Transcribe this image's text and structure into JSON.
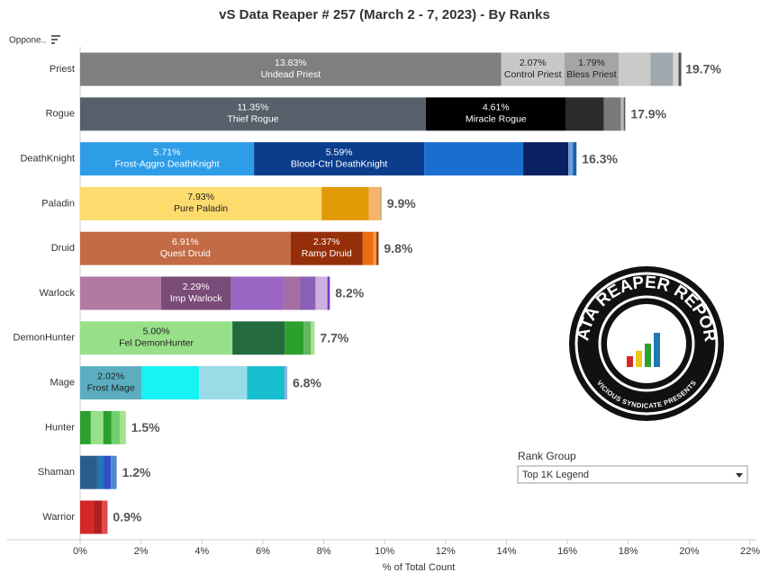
{
  "chart_data": {
    "type": "stacked-bar",
    "title": "vS Data Reaper #  257 (March 2 - 7, 2023) - By Ranks",
    "sort_label": "Oppone..",
    "x_label": "% of Total Count",
    "xlim": [
      0,
      22
    ],
    "xticks": [
      {
        "value": 0,
        "label": "0%"
      },
      {
        "value": 2,
        "label": "2%"
      },
      {
        "value": 4,
        "label": "4%"
      },
      {
        "value": 6,
        "label": "6%"
      },
      {
        "value": 8,
        "label": "8%"
      },
      {
        "value": 10,
        "label": "10%"
      },
      {
        "value": 12,
        "label": "12%"
      },
      {
        "value": 14,
        "label": "14%"
      },
      {
        "value": 16,
        "label": "16%"
      },
      {
        "value": 18,
        "label": "18%"
      },
      {
        "value": 20,
        "label": "20%"
      },
      {
        "value": 22,
        "label": "22%"
      }
    ],
    "categories": [
      "Priest",
      "Rogue",
      "DeathKnight",
      "Paladin",
      "Druid",
      "Warlock",
      "DemonHunter",
      "Mage",
      "Hunter",
      "Shaman",
      "Warrior"
    ],
    "rows": [
      {
        "values": [
          13.83,
          2.07,
          1.79,
          1.04,
          0.74,
          0.18,
          0.09
        ],
        "value_labels": [
          "13.83%",
          "2.07%",
          "1.79%",
          null,
          null,
          null,
          null
        ],
        "names": [
          "Undead Priest",
          "Control Priest",
          "Bless Priest",
          null,
          null,
          null,
          null
        ],
        "colors": [
          "#7f7f7f",
          "#c7c7c7",
          "#a5a5a5",
          "#c9c9c9",
          "#a0a8ad",
          "#d6d6d6",
          "#555555"
        ],
        "total": 19.7,
        "total_label": "19.7%"
      },
      {
        "values": [
          11.35,
          4.61,
          1.24,
          0.56,
          0.09,
          0.05
        ],
        "value_labels": [
          "11.35%",
          "4.61%",
          null,
          null,
          null,
          null
        ],
        "names": [
          "Thief Rogue",
          "Miracle Rogue",
          null,
          null,
          null,
          null
        ],
        "colors": [
          "#56606a",
          "#000000",
          "#2b2b2b",
          "#7a7a7a",
          "#bbbbbb",
          "#555555"
        ],
        "total": 17.9,
        "total_label": "17.9%"
      },
      {
        "values": [
          5.71,
          5.59,
          3.25,
          1.48,
          0.15,
          0.12
        ],
        "value_labels": [
          "5.71%",
          "5.59%",
          null,
          null,
          null,
          null
        ],
        "names": [
          "Frost-Aggro DeathKnight",
          "Blood-Ctrl DeathKnight",
          null,
          null,
          null,
          null
        ],
        "colors": [
          "#2e9de8",
          "#0a3e8c",
          "#1a6ed0",
          "#0a2060",
          "#6aa0d8",
          "#1e5fb0"
        ],
        "total": 16.3,
        "total_label": "16.3%"
      },
      {
        "values": [
          7.93,
          1.55,
          0.36,
          0.06
        ],
        "value_labels": [
          "7.93%",
          null,
          null,
          null
        ],
        "names": [
          "Pure Paladin",
          null,
          null,
          null
        ],
        "colors": [
          "#fddb6d",
          "#e19b06",
          "#f7b26b",
          "#c8b070"
        ],
        "total": 9.9,
        "total_label": "9.9%"
      },
      {
        "values": [
          6.91,
          2.37,
          0.35,
          0.1,
          0.07
        ],
        "value_labels": [
          "6.91%",
          "2.37%",
          null,
          null,
          null
        ],
        "names": [
          "Quest Druid",
          "Ramp Druid",
          null,
          null,
          null
        ],
        "colors": [
          "#c26b45",
          "#952f0a",
          "#ef6a14",
          "#f59a3d",
          "#8b3b1a"
        ],
        "total": 9.8,
        "total_label": "9.8%"
      },
      {
        "values": [
          2.66,
          2.29,
          1.75,
          0.53,
          0.5,
          0.39,
          0.08
        ],
        "value_labels": [
          null,
          "2.29%",
          null,
          null,
          null,
          null,
          null
        ],
        "names": [
          null,
          "Imp Warlock",
          null,
          null,
          null,
          null,
          null
        ],
        "colors": [
          "#b07aa1",
          "#7a4a78",
          "#9b66c3",
          "#a66ea0",
          "#8c5fb8",
          "#cdb0dd",
          "#7b39c8"
        ],
        "total": 8.2,
        "total_label": "8.2%"
      },
      {
        "values": [
          5.0,
          1.72,
          0.62,
          0.24,
          0.12
        ],
        "value_labels": [
          "5.00%",
          null,
          null,
          null,
          null
        ],
        "names": [
          "Fel DemonHunter",
          null,
          null,
          null,
          null
        ],
        "colors": [
          "#98df8a",
          "#236b3f",
          "#2ca02c",
          "#5fb85f",
          "#a8e08f"
        ],
        "total": 7.7,
        "total_label": "7.7%"
      },
      {
        "values": [
          2.02,
          1.89,
          1.57,
          1.24,
          0.08
        ],
        "value_labels": [
          "2.02%",
          null,
          null,
          null,
          null
        ],
        "names": [
          "Frost Mage",
          null,
          null,
          null,
          null
        ],
        "colors": [
          "#5aaec0",
          "#17f2f5",
          "#9adbe8",
          "#17becf",
          "#99aadd"
        ],
        "total": 6.8,
        "total_label": "6.8%"
      },
      {
        "values": [
          0.35,
          0.41,
          0.27,
          0.27,
          0.2
        ],
        "value_labels": [
          null,
          null,
          null,
          null,
          null
        ],
        "names": [
          null,
          null,
          null,
          null,
          null
        ],
        "colors": [
          "#2ca02c",
          "#98df8a",
          "#2ca02c",
          "#6fcf6f",
          "#a8e08f"
        ],
        "total": 1.5,
        "total_label": "1.5%"
      },
      {
        "values": [
          0.56,
          0.21,
          0.24,
          0.19
        ],
        "value_labels": [
          null,
          null,
          null,
          null
        ],
        "names": [
          null,
          null,
          null,
          null
        ],
        "colors": [
          "#2b5d8c",
          "#1f77b4",
          "#3050c8",
          "#4f8ad0"
        ],
        "total": 1.2,
        "total_label": "1.2%"
      },
      {
        "values": [
          0.44,
          0.27,
          0.19
        ],
        "value_labels": [
          null,
          null,
          null
        ],
        "names": [
          null,
          null,
          null
        ],
        "colors": [
          "#d62728",
          "#b02020",
          "#e04a4a"
        ],
        "total": 0.9,
        "total_label": "0.9%"
      }
    ],
    "filter": {
      "label": "Rank Group",
      "selected": "Top 1K Legend"
    },
    "logo": {
      "title": "DATA REAPER REPORT",
      "subtitle": "VICIOUS SYNDICATE PRESENTS"
    }
  }
}
